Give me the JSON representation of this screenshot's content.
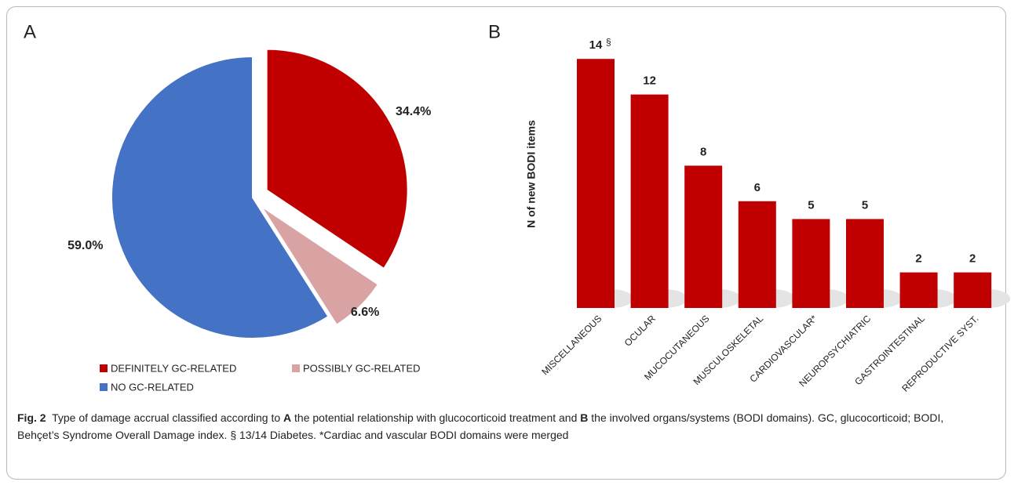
{
  "chart_data": [
    {
      "type": "pie",
      "panel": "A",
      "categories": [
        "DEFINITELY GC-RELATED",
        "POSSIBLY GC-RELATED",
        "NO GC-RELATED"
      ],
      "values": [
        34.4,
        6.6,
        59.0
      ],
      "value_labels": [
        "34.4%",
        "6.6%",
        "59.0%"
      ],
      "colors": [
        "#c00000",
        "#d9a3a3",
        "#4472c4"
      ]
    },
    {
      "type": "bar",
      "panel": "B",
      "ylabel": "N of new BODI items",
      "categories": [
        "MISCELLANEOUS",
        "OCULAR",
        "MUCOCUTANEOUS",
        "MUSCULOSKELETAL",
        "CARDIOVASCULAR*",
        "NEUROPSYCHIATRIC",
        "GASTROINTESTINAL",
        "REPRODUCTIVE SYST."
      ],
      "values": [
        14,
        12,
        8,
        6,
        5,
        5,
        2,
        2
      ],
      "annotation": "§",
      "color": "#c00000"
    }
  ],
  "caption": [
    {
      "text": "Fig. 2",
      "bold": true
    },
    {
      "text": "  Type of damage accrual classified according to "
    },
    {
      "text": "A",
      "bold": true
    },
    {
      "text": " the potential relationship with glucocorticoid treatment and "
    },
    {
      "text": "B",
      "bold": true
    },
    {
      "text": " the involved organs/systems (BODI domains). GC, glucocorticoid; BODI, Behçet’s Syndrome Overall Damage index. § 13/14 Diabetes. *Cardiac and vascular BODI domains were merged"
    }
  ]
}
